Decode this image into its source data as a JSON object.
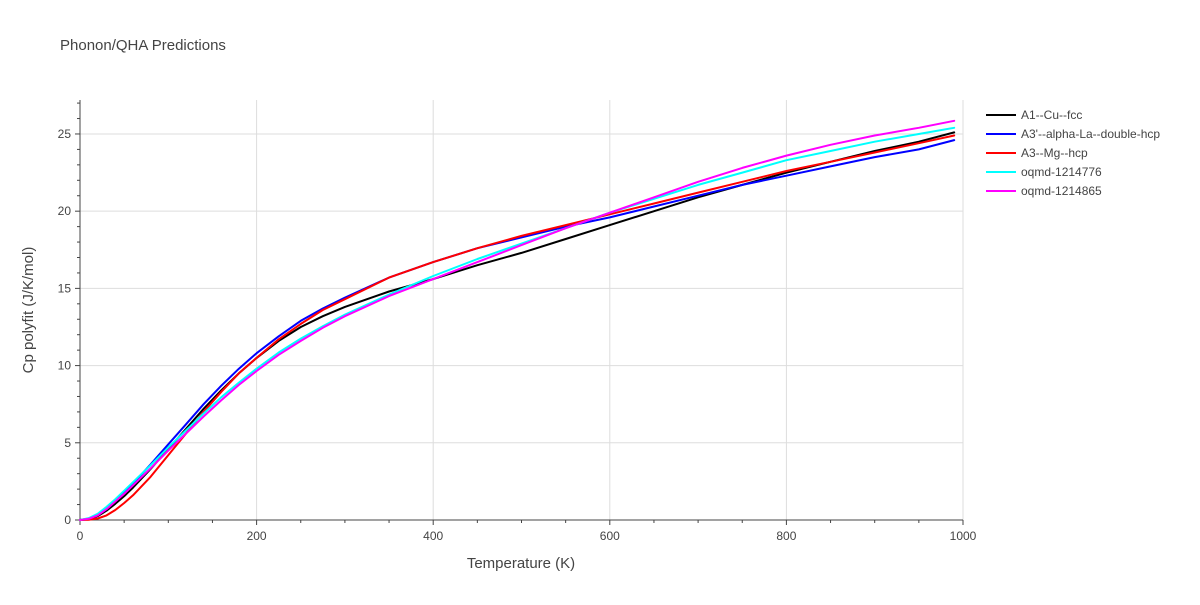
{
  "chart_data": {
    "type": "line",
    "title": "Phonon/QHA Predictions",
    "xlabel": "Temperature (K)",
    "ylabel": "Cp polyfit (J/K/mol)",
    "xlim": [
      0,
      1000
    ],
    "ylim": [
      0,
      27.2
    ],
    "xticks": [
      0,
      200,
      400,
      600,
      800,
      1000
    ],
    "yticks": [
      0,
      5,
      10,
      15,
      20,
      25
    ],
    "grid": true,
    "legend_position": "top-right, outside plot",
    "series": [
      {
        "name": "A1--Cu--fcc",
        "color": "#000000",
        "x": [
          0,
          10,
          20,
          30,
          40,
          50,
          60,
          80,
          100,
          120,
          140,
          160,
          180,
          200,
          225,
          250,
          275,
          300,
          350,
          400,
          450,
          500,
          550,
          600,
          650,
          700,
          750,
          800,
          850,
          900,
          950,
          990
        ],
        "y": [
          0,
          0.05,
          0.25,
          0.6,
          1.05,
          1.55,
          2.1,
          3.3,
          4.6,
          5.9,
          7.2,
          8.4,
          9.5,
          10.5,
          11.6,
          12.5,
          13.2,
          13.8,
          14.8,
          15.6,
          16.5,
          17.3,
          18.2,
          19.1,
          20.0,
          20.9,
          21.7,
          22.5,
          23.2,
          23.9,
          24.5,
          25.1
        ]
      },
      {
        "name": "A3'--alpha-La--double-hcp",
        "color": "#0000ff",
        "x": [
          0,
          10,
          20,
          30,
          40,
          50,
          60,
          80,
          100,
          120,
          140,
          160,
          180,
          200,
          225,
          250,
          275,
          300,
          350,
          400,
          450,
          500,
          550,
          600,
          650,
          700,
          750,
          800,
          850,
          900,
          950,
          990
        ],
        "y": [
          0,
          0.1,
          0.35,
          0.75,
          1.25,
          1.8,
          2.35,
          3.6,
          4.9,
          6.2,
          7.5,
          8.7,
          9.8,
          10.8,
          11.9,
          12.9,
          13.7,
          14.4,
          15.7,
          16.7,
          17.6,
          18.3,
          19.0,
          19.6,
          20.3,
          21.0,
          21.7,
          22.3,
          22.9,
          23.5,
          24.0,
          24.6
        ]
      },
      {
        "name": "A3--Mg--hcp",
        "color": "#ff0000",
        "x": [
          0,
          10,
          20,
          30,
          40,
          50,
          60,
          80,
          100,
          120,
          140,
          160,
          180,
          200,
          225,
          250,
          275,
          300,
          350,
          400,
          450,
          500,
          550,
          600,
          650,
          700,
          750,
          800,
          850,
          900,
          950,
          990
        ],
        "y": [
          0,
          0.02,
          0.1,
          0.3,
          0.65,
          1.1,
          1.6,
          2.8,
          4.2,
          5.6,
          7.0,
          8.3,
          9.5,
          10.5,
          11.7,
          12.7,
          13.6,
          14.3,
          15.7,
          16.7,
          17.6,
          18.4,
          19.1,
          19.8,
          20.5,
          21.2,
          21.9,
          22.6,
          23.2,
          23.8,
          24.4,
          24.9
        ]
      },
      {
        "name": "oqmd-1214776",
        "color": "#00ffff",
        "x": [
          0,
          10,
          20,
          30,
          40,
          50,
          60,
          80,
          100,
          120,
          140,
          160,
          180,
          200,
          225,
          250,
          275,
          300,
          350,
          400,
          450,
          500,
          550,
          600,
          650,
          700,
          750,
          800,
          850,
          900,
          950,
          990
        ],
        "y": [
          0,
          0.12,
          0.4,
          0.85,
          1.35,
          1.9,
          2.45,
          3.55,
          4.7,
          5.8,
          6.9,
          7.95,
          8.9,
          9.8,
          10.85,
          11.75,
          12.55,
          13.3,
          14.6,
          15.8,
          16.9,
          17.9,
          18.9,
          19.9,
          20.8,
          21.7,
          22.5,
          23.3,
          23.9,
          24.5,
          25.0,
          25.4
        ]
      },
      {
        "name": "oqmd-1214865",
        "color": "#ff00ff",
        "x": [
          0,
          10,
          20,
          30,
          40,
          50,
          60,
          80,
          100,
          120,
          140,
          160,
          180,
          200,
          225,
          250,
          275,
          300,
          350,
          400,
          450,
          500,
          550,
          600,
          650,
          700,
          750,
          800,
          850,
          900,
          950,
          990
        ],
        "y": [
          0,
          0.08,
          0.3,
          0.7,
          1.2,
          1.7,
          2.25,
          3.35,
          4.5,
          5.6,
          6.7,
          7.75,
          8.75,
          9.65,
          10.7,
          11.6,
          12.45,
          13.2,
          14.5,
          15.6,
          16.7,
          17.8,
          18.9,
          19.9,
          20.9,
          21.9,
          22.8,
          23.6,
          24.3,
          24.9,
          25.4,
          25.85
        ]
      }
    ]
  }
}
